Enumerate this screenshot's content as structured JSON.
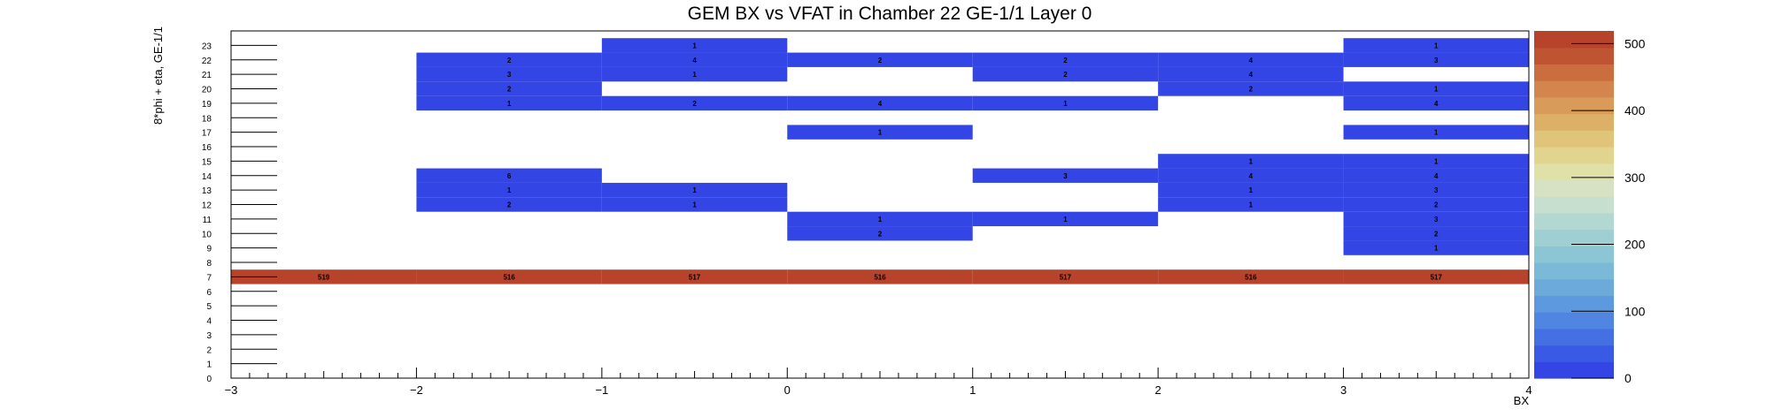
{
  "chart_data": {
    "type": "heatmap",
    "title": "GEM BX vs VFAT in Chamber 22 GE-1/1 Layer 0",
    "xlabel": "BX",
    "ylabel": "8*phi + eta, GE-1/1",
    "xlim": [
      -3,
      4
    ],
    "ylim": [
      0,
      24
    ],
    "x_ticks": [
      -3,
      -2,
      -1,
      0,
      1,
      2,
      3,
      4
    ],
    "x_tick_labels": [
      "−3",
      "−2",
      "−1",
      "0",
      "1",
      "2",
      "3",
      "4"
    ],
    "y_ticks": [
      0,
      1,
      2,
      3,
      4,
      5,
      6,
      7,
      8,
      9,
      10,
      11,
      12,
      13,
      14,
      15,
      16,
      17,
      18,
      19,
      20,
      21,
      22,
      23
    ],
    "y_tick_labels": [
      "0",
      "1",
      "2",
      "3",
      "4",
      "5",
      "6",
      "7",
      "8",
      "9",
      "10",
      "11",
      "12",
      "13",
      "14",
      "15",
      "16",
      "17",
      "18",
      "19",
      "20",
      "21",
      "22",
      "23"
    ],
    "x_bin_centers": [
      -2.5,
      -1.5,
      -0.5,
      0.5,
      1.5,
      2.5,
      3.5
    ],
    "y_bin_centers": [
      7,
      9,
      10,
      11,
      12,
      13,
      14,
      15,
      17,
      19,
      20,
      21,
      22,
      23
    ],
    "cells": [
      {
        "x": -2.5,
        "y": 7,
        "v": 519
      },
      {
        "x": -1.5,
        "y": 7,
        "v": 516
      },
      {
        "x": -0.5,
        "y": 7,
        "v": 517
      },
      {
        "x": 0.5,
        "y": 7,
        "v": 516
      },
      {
        "x": 1.5,
        "y": 7,
        "v": 517
      },
      {
        "x": 2.5,
        "y": 7,
        "v": 516
      },
      {
        "x": 3.5,
        "y": 7,
        "v": 517
      },
      {
        "x": 3.5,
        "y": 9,
        "v": 1
      },
      {
        "x": 0.5,
        "y": 10,
        "v": 2
      },
      {
        "x": 3.5,
        "y": 10,
        "v": 2
      },
      {
        "x": 0.5,
        "y": 11,
        "v": 1
      },
      {
        "x": 1.5,
        "y": 11,
        "v": 1
      },
      {
        "x": 3.5,
        "y": 11,
        "v": 3
      },
      {
        "x": -1.5,
        "y": 12,
        "v": 2
      },
      {
        "x": -0.5,
        "y": 12,
        "v": 1
      },
      {
        "x": 2.5,
        "y": 12,
        "v": 1
      },
      {
        "x": 3.5,
        "y": 12,
        "v": 2
      },
      {
        "x": -1.5,
        "y": 13,
        "v": 1
      },
      {
        "x": -0.5,
        "y": 13,
        "v": 1
      },
      {
        "x": 2.5,
        "y": 13,
        "v": 1
      },
      {
        "x": 3.5,
        "y": 13,
        "v": 3
      },
      {
        "x": -1.5,
        "y": 14,
        "v": 6
      },
      {
        "x": 1.5,
        "y": 14,
        "v": 3
      },
      {
        "x": 2.5,
        "y": 14,
        "v": 4
      },
      {
        "x": 3.5,
        "y": 14,
        "v": 4
      },
      {
        "x": 2.5,
        "y": 15,
        "v": 1
      },
      {
        "x": 3.5,
        "y": 15,
        "v": 1
      },
      {
        "x": 0.5,
        "y": 17,
        "v": 1
      },
      {
        "x": 3.5,
        "y": 17,
        "v": 1
      },
      {
        "x": -1.5,
        "y": 19,
        "v": 1
      },
      {
        "x": -0.5,
        "y": 19,
        "v": 2
      },
      {
        "x": 0.5,
        "y": 19,
        "v": 4
      },
      {
        "x": 1.5,
        "y": 19,
        "v": 1
      },
      {
        "x": 3.5,
        "y": 19,
        "v": 4
      },
      {
        "x": -1.5,
        "y": 20,
        "v": 2
      },
      {
        "x": 2.5,
        "y": 20,
        "v": 2
      },
      {
        "x": 3.5,
        "y": 20,
        "v": 1
      },
      {
        "x": -1.5,
        "y": 21,
        "v": 3
      },
      {
        "x": -0.5,
        "y": 21,
        "v": 1
      },
      {
        "x": 1.5,
        "y": 21,
        "v": 2
      },
      {
        "x": 2.5,
        "y": 21,
        "v": 4
      },
      {
        "x": -1.5,
        "y": 22,
        "v": 2
      },
      {
        "x": -0.5,
        "y": 22,
        "v": 4
      },
      {
        "x": 0.5,
        "y": 22,
        "v": 2
      },
      {
        "x": 1.5,
        "y": 22,
        "v": 2
      },
      {
        "x": 2.5,
        "y": 22,
        "v": 4
      },
      {
        "x": 3.5,
        "y": 22,
        "v": 3
      },
      {
        "x": -0.5,
        "y": 23,
        "v": 1
      },
      {
        "x": 3.5,
        "y": 23,
        "v": 1
      }
    ],
    "z_range": [
      0,
      519
    ],
    "z_ticks": [
      0,
      100,
      200,
      300,
      400,
      500
    ],
    "z_tick_labels": [
      "0",
      "100",
      "200",
      "300",
      "400",
      "500"
    ],
    "color_palette": [
      "#3445e6",
      "#3a5ae6",
      "#4470e4",
      "#5086e2",
      "#5c99de",
      "#6baad9",
      "#7bb9d6",
      "#8cc5d4",
      "#9fcfd2",
      "#b3d8d1",
      "#c6dfcf",
      "#d6e2c1",
      "#e0e1a8",
      "#e0d48e",
      "#dfc47a",
      "#ddb068",
      "#d99b5a",
      "#d3854d",
      "#ca6e40",
      "#bf5433",
      "#b7432b"
    ]
  }
}
